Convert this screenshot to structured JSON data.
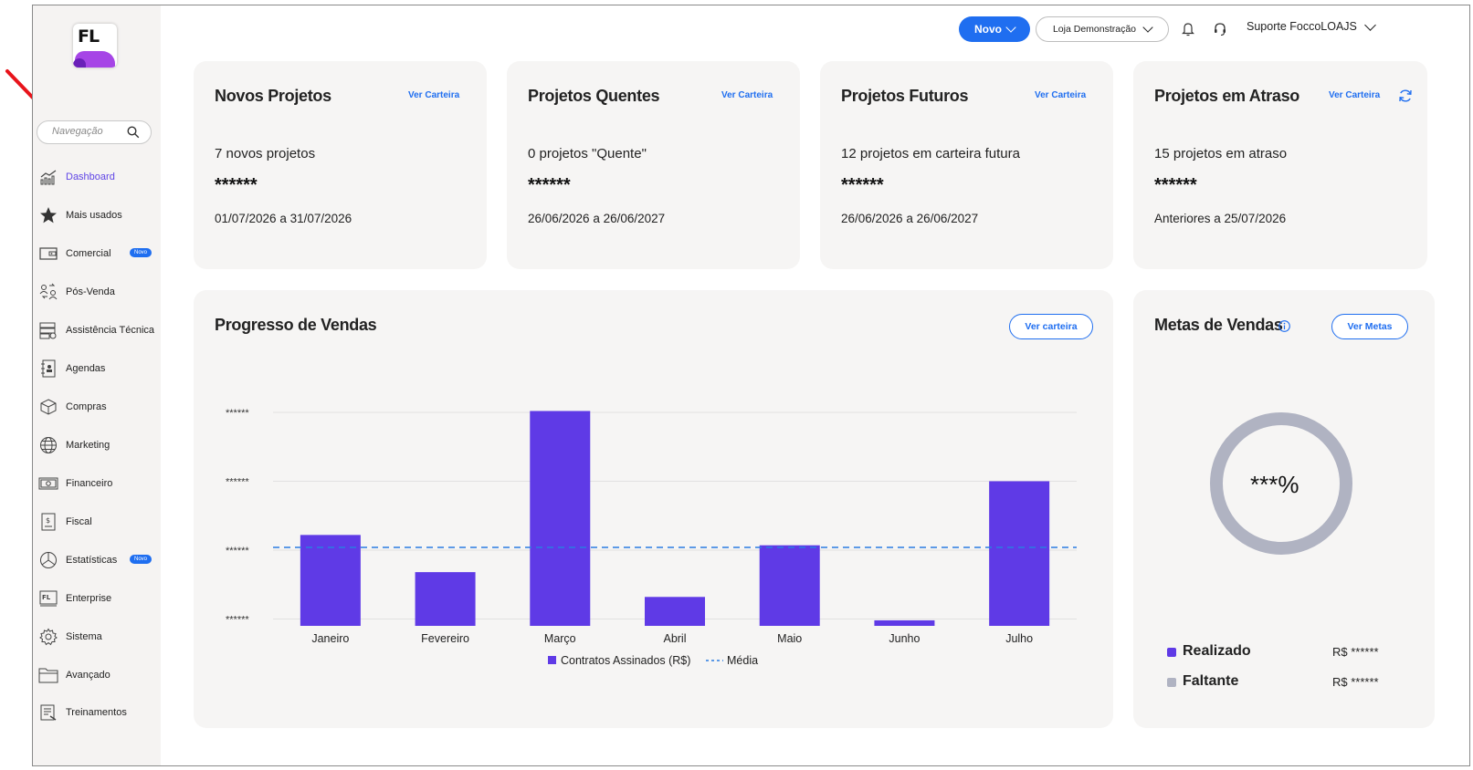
{
  "brand": {
    "logo_text": "FL"
  },
  "sidebar": {
    "search_placeholder": "Navegação",
    "items": [
      {
        "label": "Dashboard",
        "icon": "chart-bars-icon",
        "active": true
      },
      {
        "label": "Mais usados",
        "icon": "star-icon"
      },
      {
        "label": "Comercial",
        "icon": "wallet-icon",
        "badge": "Novo"
      },
      {
        "label": "Pós-Venda",
        "icon": "users-exchange-icon"
      },
      {
        "label": "Assistência Técnica",
        "icon": "server-gear-icon"
      },
      {
        "label": "Agendas",
        "icon": "agenda-icon"
      },
      {
        "label": "Compras",
        "icon": "box-icon"
      },
      {
        "label": "Marketing",
        "icon": "globe-icon"
      },
      {
        "label": "Financeiro",
        "icon": "banknote-icon"
      },
      {
        "label": "Fiscal",
        "icon": "receipt-icon"
      },
      {
        "label": "Estatísticas",
        "icon": "pie-chart-icon",
        "badge": "Novo"
      },
      {
        "label": "Enterprise",
        "icon": "enterprise-icon"
      },
      {
        "label": "Sistema",
        "icon": "gear-icon"
      },
      {
        "label": "Avançado",
        "icon": "folder-icon"
      },
      {
        "label": "Treinamentos",
        "icon": "training-icon"
      }
    ]
  },
  "topbar": {
    "novo_label": "Novo",
    "store_label": "Loja Demonstração",
    "user_label": "Suporte FoccoLOAJS"
  },
  "cards": [
    {
      "title": "Novos Projetos",
      "link": "Ver Carteira",
      "line": "7 novos projetos",
      "stars": "******",
      "date": "01/07/2026 a 31/07/2026"
    },
    {
      "title": "Projetos Quentes",
      "link": "Ver Carteira",
      "line": "0 projetos \"Quente\"",
      "stars": "******",
      "date": "26/06/2026 a 26/06/2027"
    },
    {
      "title": "Projetos Futuros",
      "link": "Ver Carteira",
      "line": "12 projetos em carteira futura",
      "stars": "******",
      "date": "26/06/2026 a 26/06/2027"
    },
    {
      "title": "Projetos em Atraso",
      "link": "Ver Carteira",
      "line": "15 projetos em atraso",
      "stars": "******",
      "date": "Anteriores a 25/07/2026"
    }
  ],
  "sales": {
    "title": "Progresso de Vendas",
    "button": "Ver carteira"
  },
  "chart_data": {
    "type": "bar",
    "categories": [
      "Janeiro",
      "Fevereiro",
      "Março",
      "Abril",
      "Maio",
      "Junho",
      "Julho"
    ],
    "values": [
      1.32,
      0.78,
      3.12,
      0.42,
      1.17,
      0.08,
      2.1
    ],
    "average": 1.14,
    "ylim": [
      0,
      3.2
    ],
    "y_ticks": [
      0,
      1,
      2,
      3
    ],
    "y_tick_label": "******",
    "series": [
      {
        "name": "Contratos Assinados (R$)",
        "color": "#5f3ae6"
      },
      {
        "name": "Média",
        "color": "#2a7de1",
        "style": "dashed"
      }
    ],
    "legend": "bottom"
  },
  "metas": {
    "title": "Metas de Vendas",
    "button": "Ver Metas",
    "percent": "***%",
    "legend": [
      {
        "label": "Realizado",
        "value": "R$ ******",
        "color": "#5f3ae6"
      },
      {
        "label": "Faltante",
        "value": "R$ ******",
        "color": "#b0b3c2"
      }
    ]
  }
}
